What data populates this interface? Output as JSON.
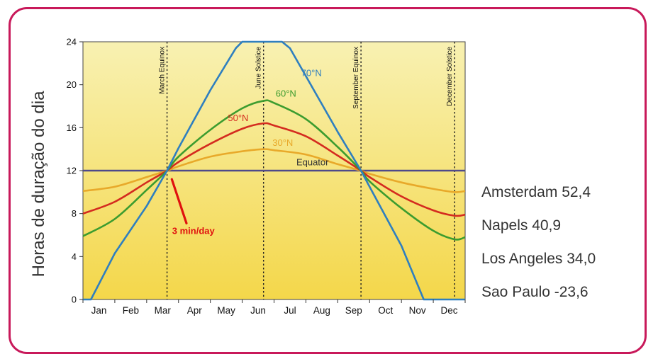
{
  "ylabel": "Horas de duração do dia",
  "cities": [
    {
      "label": "Amsterdam 52,4"
    },
    {
      "label": "Napels 40,9"
    },
    {
      "label": "Los Angeles 34,0"
    },
    {
      "label": "Sao Paulo -23,6"
    }
  ],
  "colors": {
    "frame": "#c8195a",
    "equator": "#4f4a8a",
    "s30": "#e8a92a",
    "s50": "#d42b1f",
    "s60": "#3c9c2f",
    "s70": "#2f7fbf",
    "annotation": "#e0110f"
  },
  "chart_data": {
    "type": "line",
    "xlabel": "",
    "ylabel": "Horas de duração do dia",
    "ylim": [
      0,
      24
    ],
    "xlim": [
      0,
      12
    ],
    "yticks": [
      "0",
      "4",
      "8",
      "12",
      "16",
      "20",
      "24"
    ],
    "categories": [
      "Jan",
      "Feb",
      "Mar",
      "Apr",
      "May",
      "Jun",
      "Jul",
      "Aug",
      "Sep",
      "Oct",
      "Nov",
      "Dec"
    ],
    "markers": [
      {
        "label": "March Equinox",
        "x": 2.64
      },
      {
        "label": "June Solstice",
        "x": 5.67
      },
      {
        "label": "September Equinox",
        "x": 8.73
      },
      {
        "label": "December Solstice",
        "x": 11.67
      }
    ],
    "series": [
      {
        "name": "Equator",
        "x": [
          0,
          12
        ],
        "y": [
          12,
          12
        ]
      },
      {
        "name": "30°N",
        "x": [
          0,
          1,
          2,
          2.64,
          3,
          4,
          5,
          5.67,
          6,
          7,
          8,
          8.73,
          9,
          10,
          11,
          11.67,
          12
        ],
        "y": [
          10.1,
          10.5,
          11.4,
          12.0,
          12.4,
          13.3,
          13.8,
          14.0,
          13.9,
          13.5,
          12.6,
          12.0,
          11.7,
          10.9,
          10.3,
          10.0,
          10.1
        ]
      },
      {
        "name": "50°N",
        "x": [
          0,
          1,
          2,
          2.64,
          3,
          4,
          5,
          5.67,
          6,
          7,
          8,
          8.73,
          9,
          10,
          11,
          11.67,
          12
        ],
        "y": [
          8.0,
          9.1,
          10.9,
          12.0,
          12.8,
          14.5,
          15.9,
          16.4,
          16.2,
          15.2,
          13.4,
          12.0,
          11.4,
          9.6,
          8.3,
          7.8,
          7.9
        ]
      },
      {
        "name": "60°N",
        "x": [
          0,
          1,
          2,
          2.64,
          3,
          4,
          5,
          5.67,
          6,
          7,
          8,
          8.73,
          9,
          10,
          11,
          11.67,
          12
        ],
        "y": [
          5.9,
          7.5,
          10.2,
          12.0,
          13.3,
          15.8,
          17.8,
          18.5,
          18.3,
          16.8,
          14.2,
          12.0,
          11.0,
          8.5,
          6.4,
          5.6,
          5.8
        ]
      },
      {
        "name": "70°N",
        "x": [
          0,
          0.25,
          1,
          2,
          2.64,
          3,
          4,
          4.8,
          5.0,
          6.25,
          6.5,
          7,
          8,
          8.73,
          9,
          10,
          10.7,
          11,
          12
        ],
        "y": [
          0,
          0,
          4.3,
          8.7,
          12.0,
          14.1,
          19.5,
          23.4,
          24,
          24,
          23.4,
          20.8,
          15.6,
          12.0,
          10.5,
          5.0,
          0,
          0,
          0
        ]
      }
    ],
    "annotations": [
      {
        "text": "3 min/day"
      }
    ],
    "grid": false,
    "legend": "none"
  }
}
